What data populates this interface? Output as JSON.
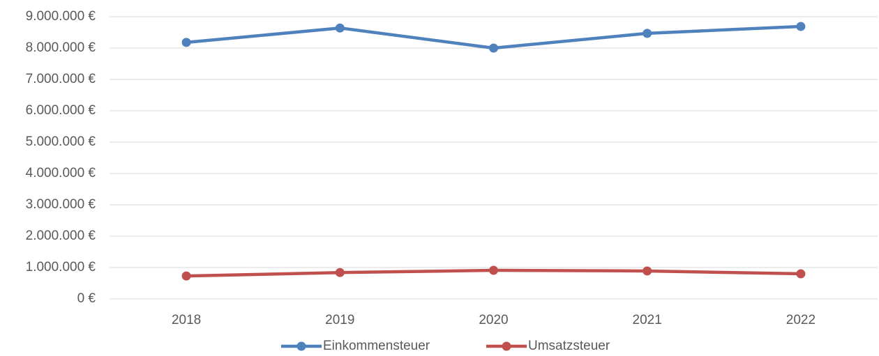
{
  "chart_data": {
    "type": "line",
    "categories": [
      "2018",
      "2019",
      "2020",
      "2021",
      "2022"
    ],
    "series": [
      {
        "name": "Einkommensteuer",
        "color": "#4f81bd",
        "values": [
          8180000,
          8640000,
          8000000,
          8470000,
          8690000
        ]
      },
      {
        "name": "Umsatzsteuer",
        "color": "#c0504d",
        "values": [
          730000,
          840000,
          910000,
          890000,
          800000
        ]
      }
    ],
    "ylim": [
      0,
      9000000
    ],
    "yticks": [
      {
        "value": 0,
        "label": "0 €"
      },
      {
        "value": 1000000,
        "label": "1.000.000 €"
      },
      {
        "value": 2000000,
        "label": "2.000.000 €"
      },
      {
        "value": 3000000,
        "label": "3.000.000 €"
      },
      {
        "value": 4000000,
        "label": "4.000.000 €"
      },
      {
        "value": 5000000,
        "label": "5.000.000 €"
      },
      {
        "value": 6000000,
        "label": "6.000.000 €"
      },
      {
        "value": 7000000,
        "label": "7.000.000 €"
      },
      {
        "value": 8000000,
        "label": "8.000.000 €"
      },
      {
        "value": 9000000,
        "label": "9.000.000 €"
      }
    ],
    "grid": true,
    "legend": "bottom"
  }
}
